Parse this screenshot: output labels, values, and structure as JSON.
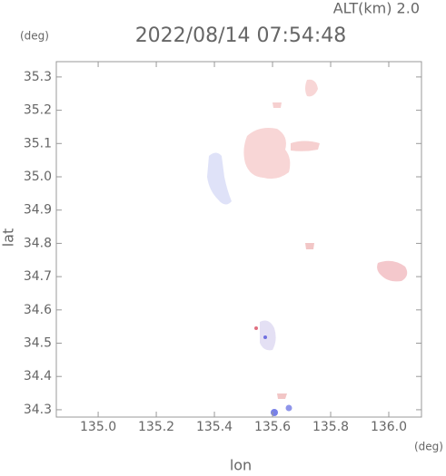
{
  "chart_data": {
    "type": "map",
    "title": "2022/08/14 07:54:48",
    "altitude_label": "ALT(km) 2.0",
    "x_unit": "(deg)",
    "y_unit": "(deg)",
    "x_label": "lon",
    "y_label": "lat",
    "xlim": [
      134.856,
      136.1125
    ],
    "ylim": [
      34.278,
      35.346
    ],
    "xticks": [
      {
        "value": 135,
        "label": "135.0"
      },
      135.2,
      135.4,
      135.6,
      135.8,
      {
        "value": 136,
        "label": "136.0"
      }
    ],
    "yticks": [
      34.3,
      34.4,
      34.5,
      34.6,
      34.7,
      34.8,
      34.9,
      {
        "value": 35,
        "label": "35.0"
      },
      35.1,
      35.2,
      35.3
    ]
  }
}
